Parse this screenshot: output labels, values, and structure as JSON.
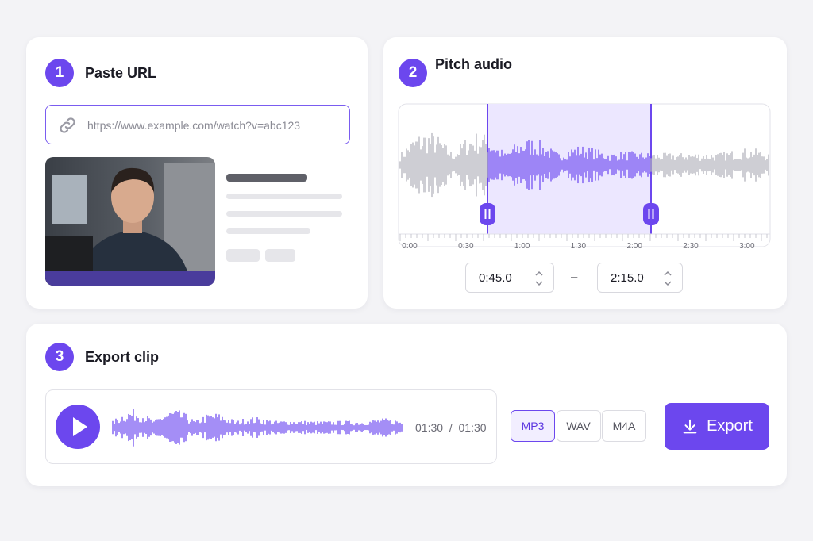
{
  "steps": [
    {
      "number": "1",
      "title": "Paste URL"
    },
    {
      "number": "2",
      "title": "Pitch audio"
    },
    {
      "number": "3",
      "title": "Export clip"
    }
  ],
  "url_input": {
    "placeholder": "https://www.example.com/watch?v=abc123"
  },
  "timeline": {
    "labels": [
      "0:00",
      "0:30",
      "1:00",
      "1:30",
      "2:00",
      "2:30",
      "3:00"
    ]
  },
  "range": {
    "start": "0:45.0",
    "separator": "–",
    "end": "2:15.0"
  },
  "player": {
    "current": "01:30",
    "separator": "/",
    "total": "01:30"
  },
  "formats": [
    "MP3",
    "WAV",
    "M4A"
  ],
  "selected_format": "MP3",
  "export_button": "Export"
}
